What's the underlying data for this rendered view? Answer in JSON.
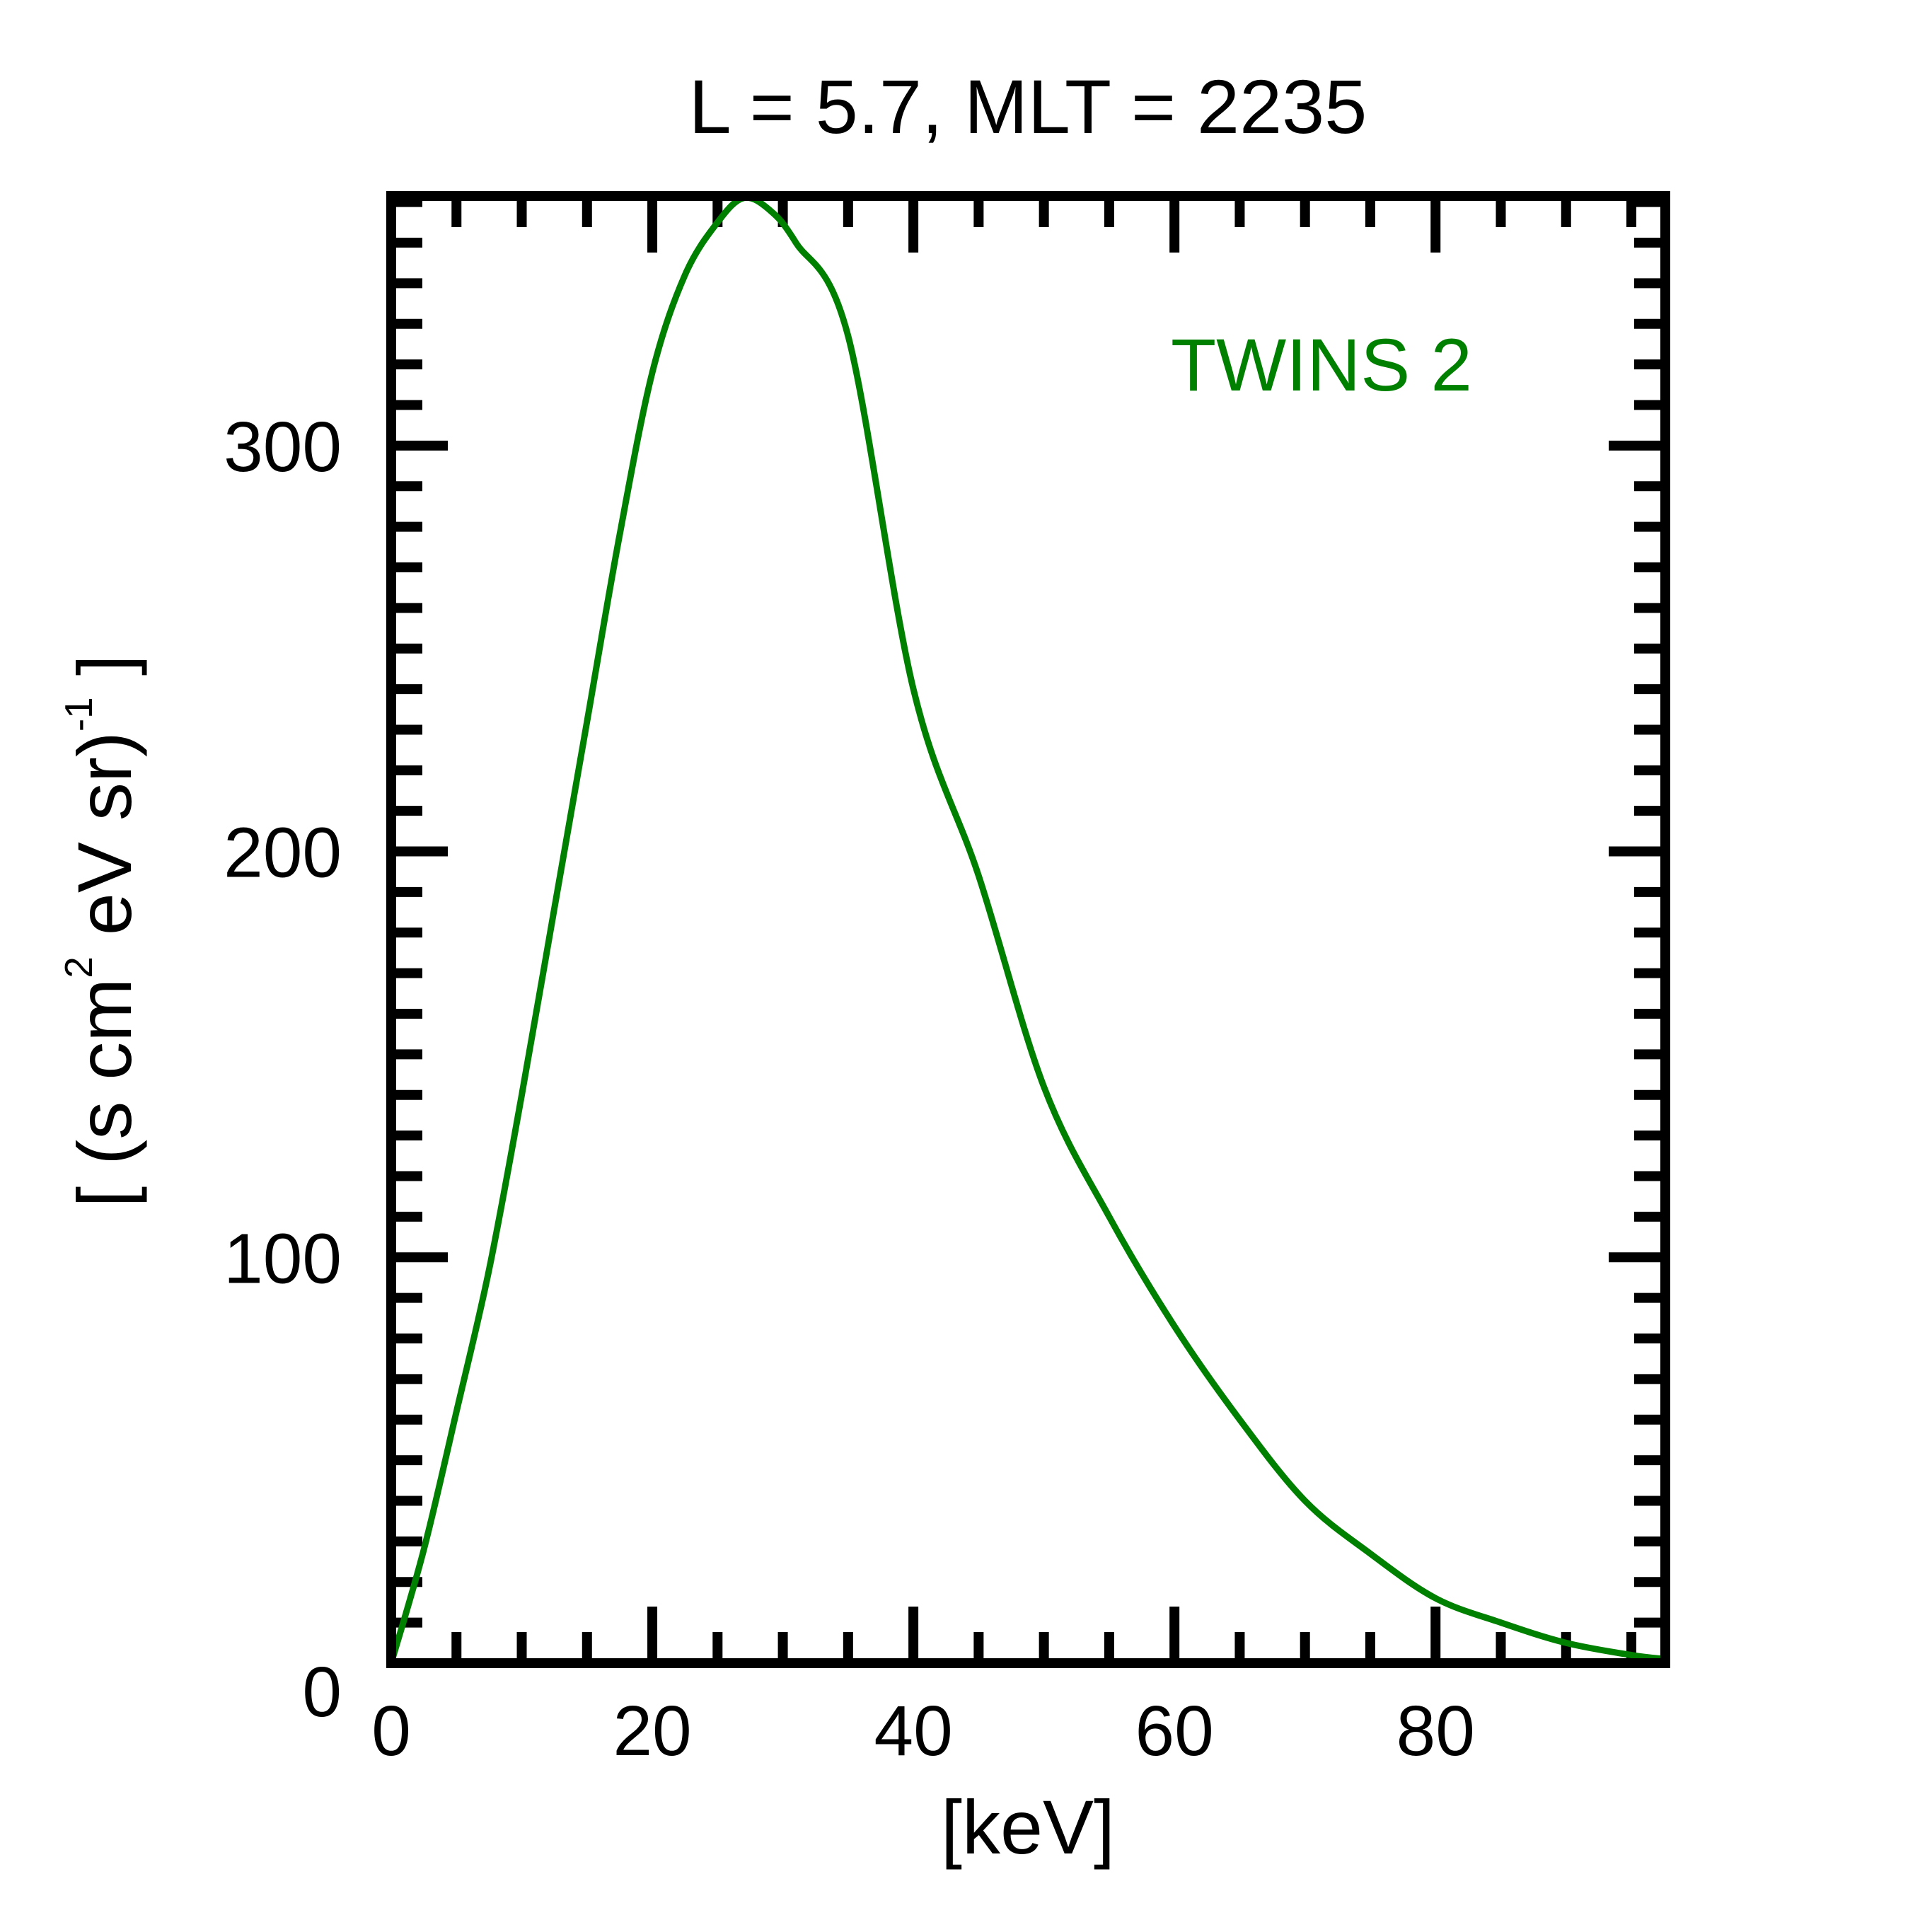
{
  "chart_data": {
    "type": "line",
    "title": "L =  5.7, MLT = 2235",
    "xlabel": "[keV]",
    "ylabel": {
      "prefix": "[ (s cm",
      "sup1": "2",
      "mid": " eV sr)",
      "sup2": "-1",
      "suffix": " ]"
    },
    "xlim": [
      0,
      97.6
    ],
    "ylim": [
      0,
      361.5
    ],
    "x_ticks": [
      0,
      20,
      40,
      60,
      80
    ],
    "x_tick_labels": [
      "0",
      "20",
      "40",
      "60",
      "80"
    ],
    "x_minor_step": 5,
    "y_ticks": [
      0,
      100,
      200,
      300
    ],
    "y_tick_labels": [
      "0",
      "100",
      "200",
      "300"
    ],
    "y_minor_step": 10,
    "grid": false,
    "legend": {
      "position": "top-right",
      "entries": [
        "TWINS 2"
      ]
    },
    "series": [
      {
        "name": "TWINS 2",
        "color": "#008000",
        "x": [
          0,
          2.5,
          5,
          7.5,
          10,
          12.5,
          15,
          17.5,
          20,
          22.5,
          25,
          27,
          29,
          31,
          35,
          40,
          45,
          50,
          55,
          60,
          65,
          70,
          75,
          80,
          85,
          90,
          95,
          97.6
        ],
        "y": [
          0,
          28,
          62,
          97,
          140,
          186,
          232,
          278,
          318,
          342,
          355,
          361,
          358,
          350,
          327,
          240,
          194,
          142,
          110,
          83,
          60,
          40,
          27,
          16,
          10,
          5,
          2,
          1
        ]
      }
    ]
  }
}
